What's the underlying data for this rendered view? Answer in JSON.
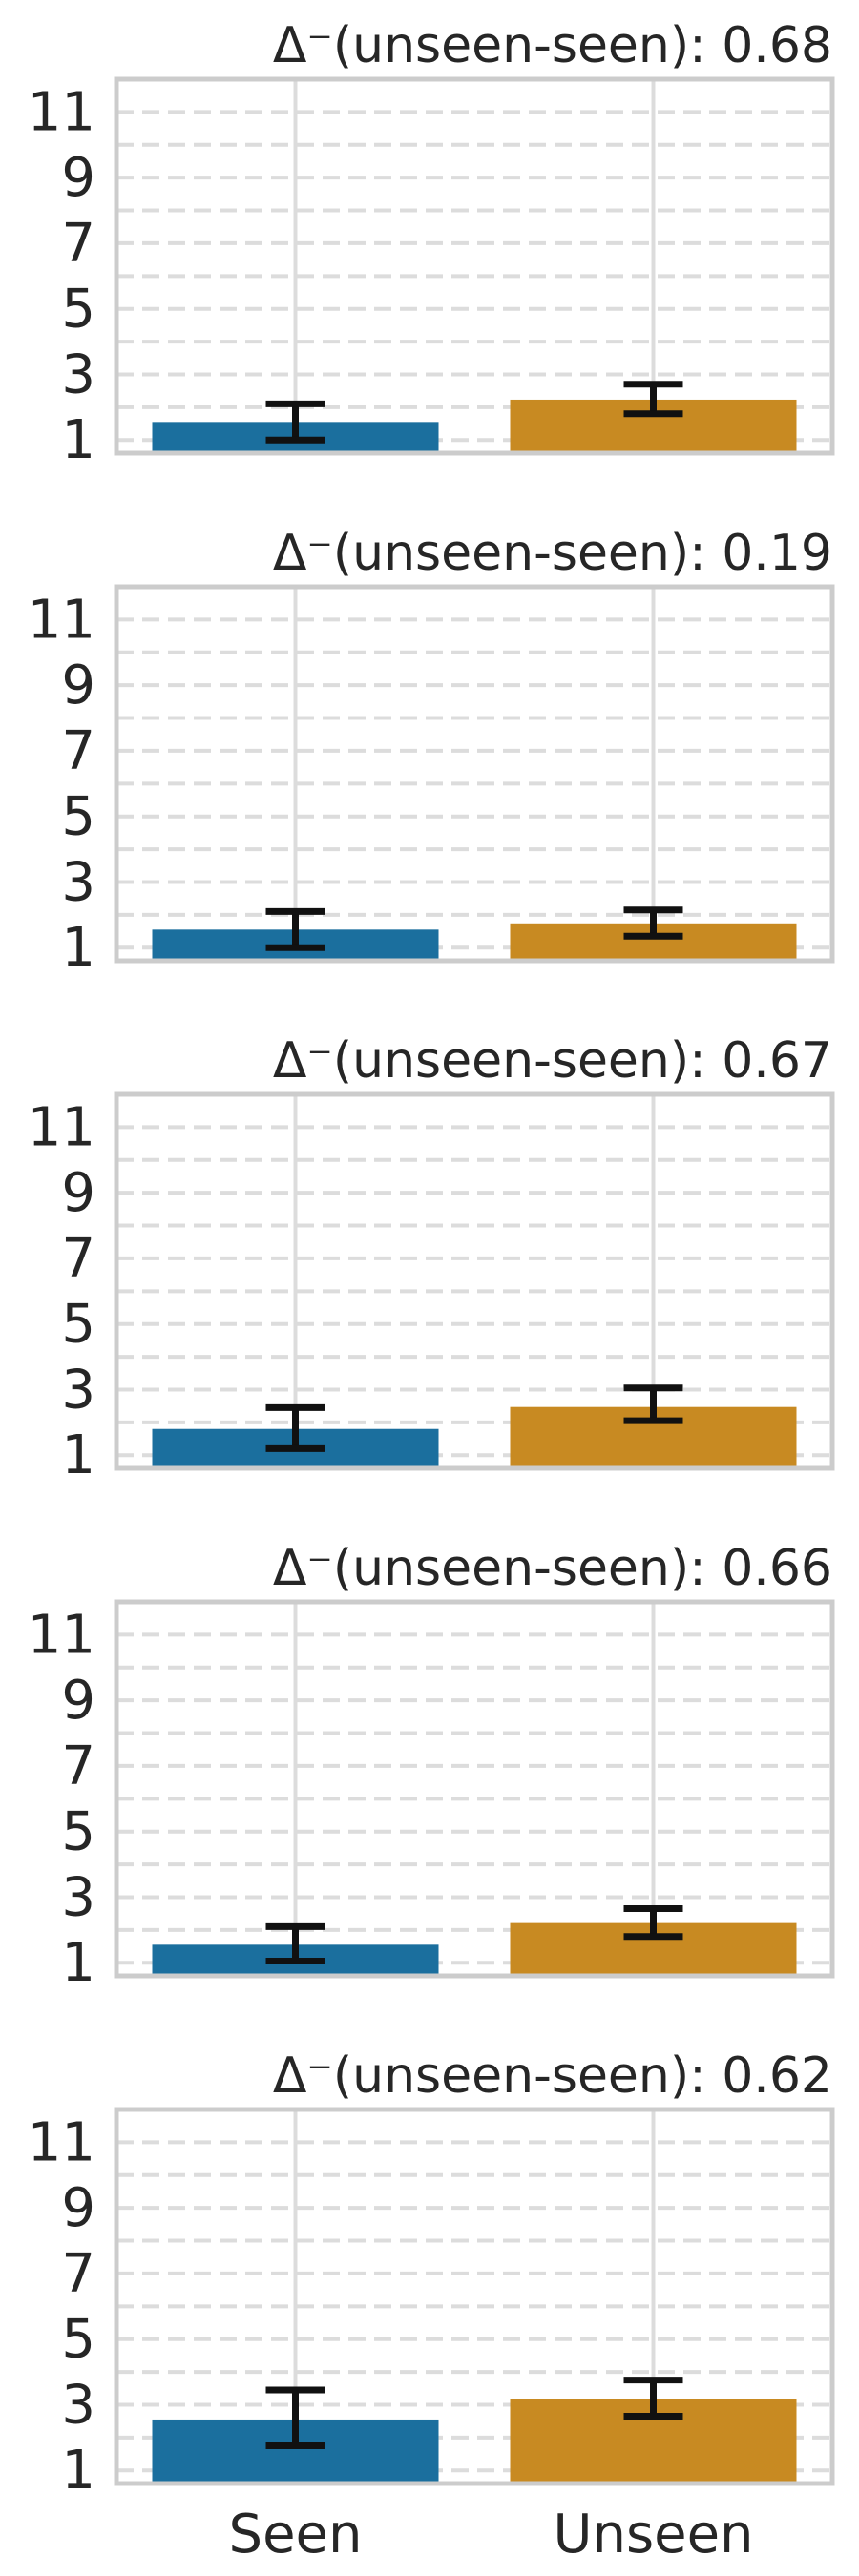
{
  "chart_data": [
    {
      "type": "bar",
      "title": "Δ⁻(unseen-seen): 0.68",
      "categories": [
        "Seen",
        "Unseen"
      ],
      "values": [
        1.55,
        2.23
      ],
      "error_low": [
        1.0,
        1.8
      ],
      "error_high": [
        2.1,
        2.7
      ],
      "ylim": [
        0.6,
        12
      ],
      "yticks": [
        "1",
        "3",
        "5",
        "7",
        "9",
        "11"
      ],
      "show_xticklabels": false,
      "colors": [
        "#1b6f9e",
        "#c88a22"
      ],
      "grid": true
    },
    {
      "type": "bar",
      "title": "Δ⁻(unseen-seen): 0.19",
      "categories": [
        "Seen",
        "Unseen"
      ],
      "values": [
        1.55,
        1.74
      ],
      "error_low": [
        1.0,
        1.35
      ],
      "error_high": [
        2.1,
        2.15
      ],
      "ylim": [
        0.6,
        12
      ],
      "yticks": [
        "1",
        "3",
        "5",
        "7",
        "9",
        "11"
      ],
      "show_xticklabels": false,
      "colors": [
        "#1b6f9e",
        "#c88a22"
      ],
      "grid": true
    },
    {
      "type": "bar",
      "title": "Δ⁻(unseen-seen): 0.67",
      "categories": [
        "Seen",
        "Unseen"
      ],
      "values": [
        1.8,
        2.47
      ],
      "error_low": [
        1.2,
        2.05
      ],
      "error_high": [
        2.45,
        3.05
      ],
      "ylim": [
        0.6,
        12
      ],
      "yticks": [
        "1",
        "3",
        "5",
        "7",
        "9",
        "11"
      ],
      "show_xticklabels": false,
      "colors": [
        "#1b6f9e",
        "#c88a22"
      ],
      "grid": true
    },
    {
      "type": "bar",
      "title": "Δ⁻(unseen-seen): 0.66",
      "categories": [
        "Seen",
        "Unseen"
      ],
      "values": [
        1.55,
        2.21
      ],
      "error_low": [
        1.05,
        1.8
      ],
      "error_high": [
        2.1,
        2.65
      ],
      "ylim": [
        0.6,
        12
      ],
      "yticks": [
        "1",
        "3",
        "5",
        "7",
        "9",
        "11"
      ],
      "show_xticklabels": false,
      "colors": [
        "#1b6f9e",
        "#c88a22"
      ],
      "grid": true
    },
    {
      "type": "bar",
      "title": "Δ⁻(unseen-seen): 0.62",
      "categories": [
        "Seen",
        "Unseen"
      ],
      "values": [
        2.55,
        3.17
      ],
      "error_low": [
        1.75,
        2.65
      ],
      "error_high": [
        3.45,
        3.75
      ],
      "ylim": [
        0.6,
        12
      ],
      "yticks": [
        "1",
        "3",
        "5",
        "7",
        "9",
        "11"
      ],
      "show_xticklabels": true,
      "colors": [
        "#1b6f9e",
        "#c88a22"
      ],
      "grid": true
    }
  ]
}
